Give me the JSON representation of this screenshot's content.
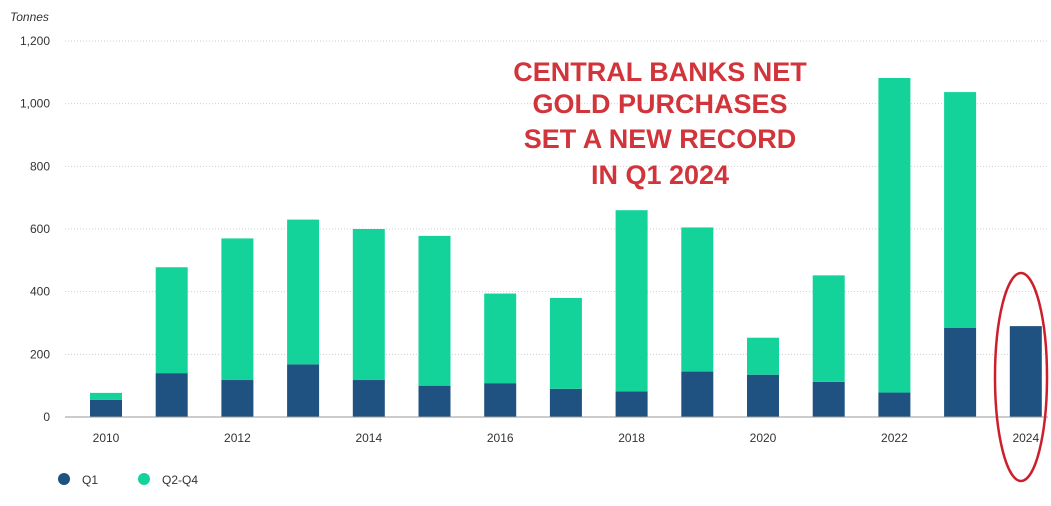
{
  "chart_data": {
    "type": "bar",
    "stacked": true,
    "unit_label": "Tonnes",
    "title": "",
    "xlabel": "",
    "ylabel": "",
    "categories": [
      "2010",
      "2011",
      "2012",
      "2013",
      "2014",
      "2015",
      "2016",
      "2017",
      "2018",
      "2019",
      "2020",
      "2021",
      "2022",
      "2023",
      "2024"
    ],
    "x_tick_labels": [
      "2010",
      "2012",
      "2014",
      "2016",
      "2018",
      "2020",
      "2022",
      "2024"
    ],
    "y_ticks": [
      "0",
      "200",
      "400",
      "600",
      "800",
      "1,000",
      "1,200"
    ],
    "ylim": [
      0,
      1200
    ],
    "grid": true,
    "series": [
      {
        "name": "Q1",
        "color": "#1f5280",
        "values": [
          55,
          140,
          118,
          168,
          118,
          100,
          108,
          90,
          82,
          145,
          135,
          112,
          78,
          285,
          290
        ]
      },
      {
        "name": "Q2-Q4",
        "color": "#14d39a",
        "values": [
          22,
          338,
          452,
          462,
          482,
          478,
          286,
          290,
          578,
          460,
          118,
          340,
          1004,
          752,
          null
        ]
      }
    ],
    "annotation": {
      "lines": [
        "CENTRAL BANKS NET",
        "GOLD PURCHASES",
        "SET A NEW RECORD",
        "IN Q1 2024"
      ],
      "color": "#d1343a"
    },
    "highlight": {
      "category": "2024",
      "shape": "red-ellipse",
      "color": "#cc1f2b"
    },
    "legend": {
      "placement": "bottom-left",
      "items": [
        "Q1",
        "Q2-Q4"
      ]
    }
  }
}
